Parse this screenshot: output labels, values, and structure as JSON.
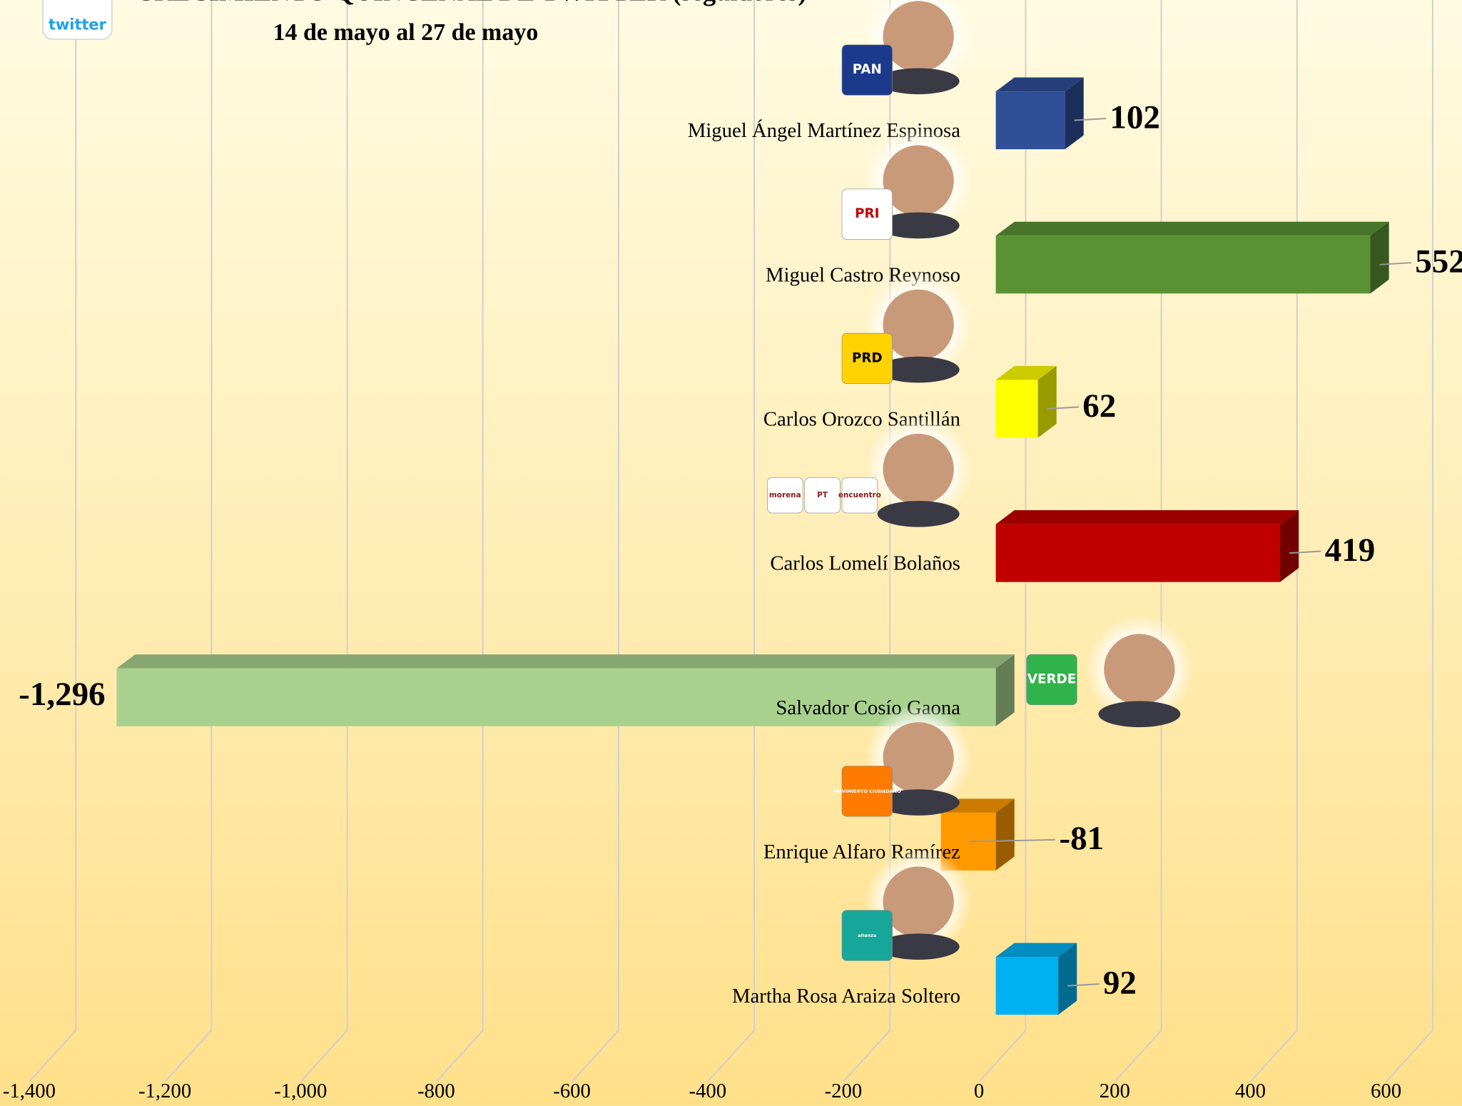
{
  "chart_data": {
    "type": "bar",
    "orientation": "horizontal",
    "brand": "twitter",
    "title": "CRECIMIENTO QUINCENAL DE TWITTER (seguidores)",
    "subtitle": "14 de mayo al 27 de mayo",
    "categories": [
      "Miguel Ángel Martínez Espinosa",
      "Miguel Castro Reynoso",
      "Carlos Orozco Santillán",
      "Carlos Lomelí Bolaños",
      "Salvador Cosío Gaona",
      "Enrique Alfaro Ramírez",
      "Martha Rosa Araiza Soltero"
    ],
    "logos": [
      [
        "PAN"
      ],
      [
        "PRI"
      ],
      [
        "PRD"
      ],
      [
        "morena",
        "PT",
        "encuentro"
      ],
      [
        "VERDE"
      ],
      [
        "MOVIMIENTO CIUDADANO"
      ],
      [
        "alianza"
      ]
    ],
    "values": [
      102,
      552,
      62,
      419,
      -1296,
      -81,
      92
    ],
    "value_labels": [
      "102",
      "552",
      "62",
      "419",
      "-1,296",
      "-81",
      "92"
    ],
    "colors": [
      "#2f4f96",
      "#5b9236",
      "#ffff00",
      "#c00000",
      "#a9d18e",
      "#ff9900",
      "#00b0f0"
    ],
    "xlim": [
      -1400,
      600
    ],
    "xticks": [
      {
        "value": -1400,
        "label": "-1,400"
      },
      {
        "value": -1200,
        "label": "-1,200"
      },
      {
        "value": -1000,
        "label": "-1,000"
      },
      -800,
      -600,
      -400,
      -200,
      0,
      200,
      400,
      600
    ],
    "grid": true
  }
}
